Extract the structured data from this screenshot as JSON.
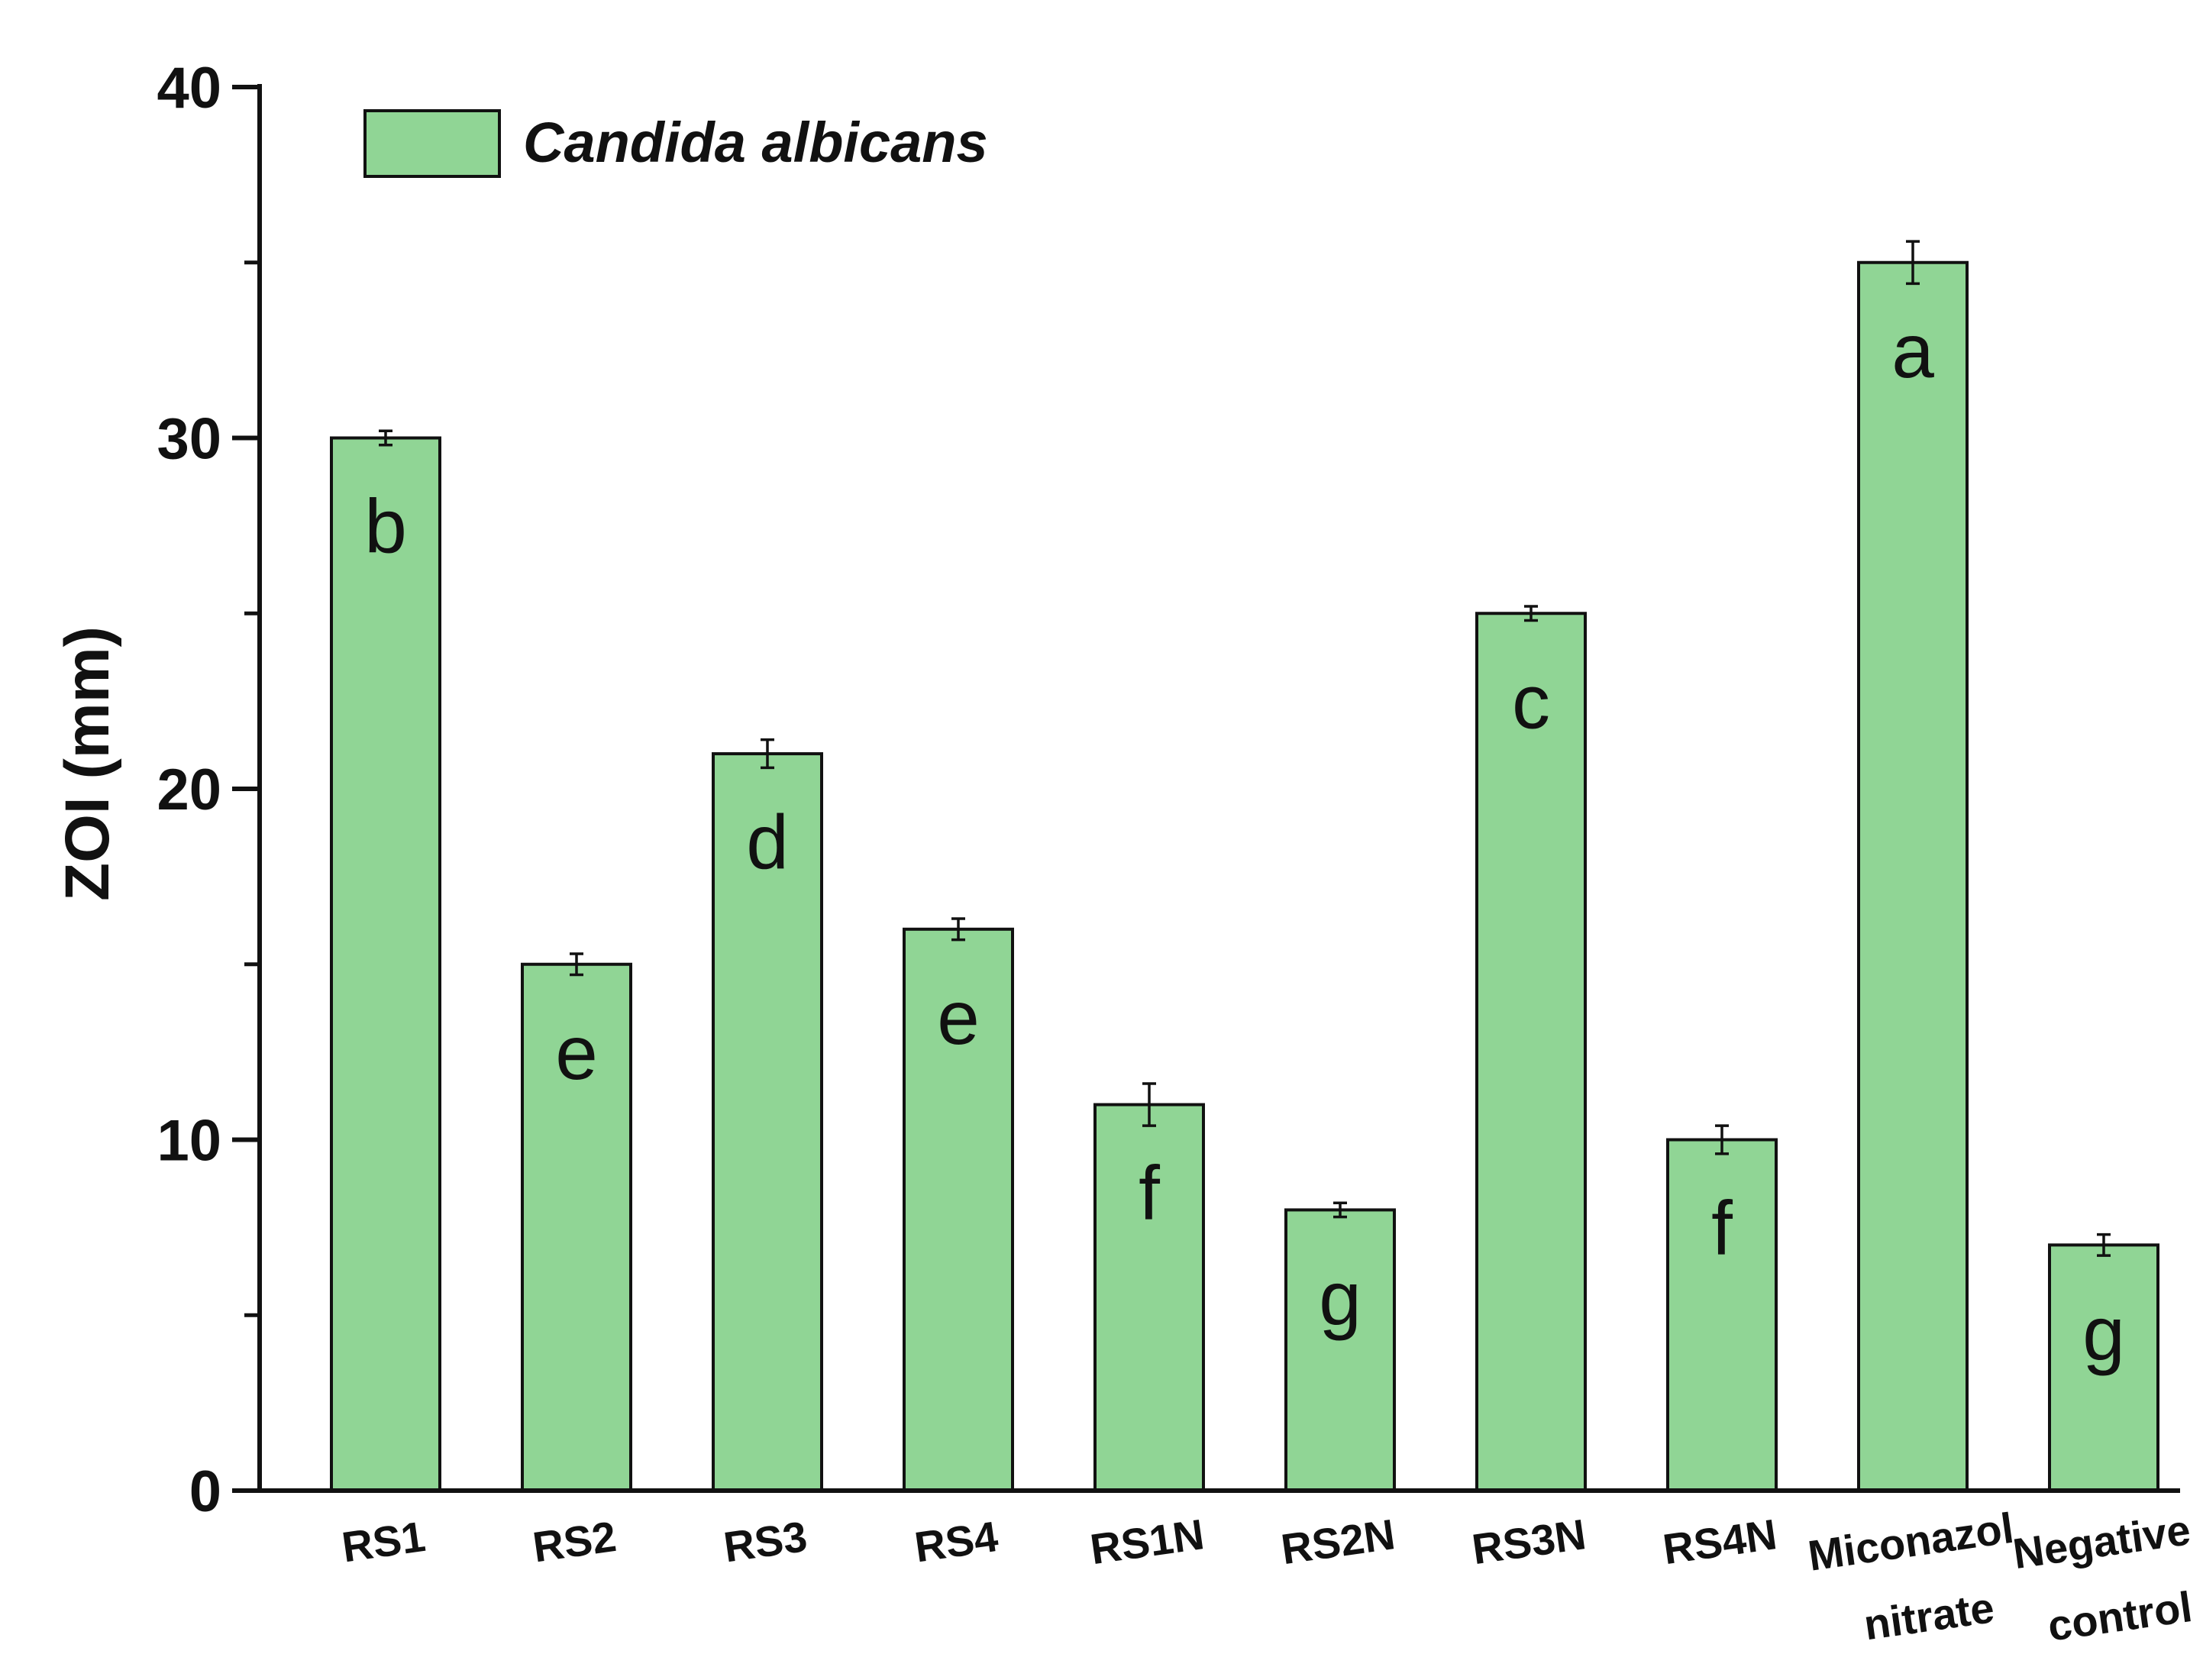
{
  "chart_data": {
    "type": "bar",
    "ylabel": "ZOI (mm)",
    "xlabel": "",
    "ylim": [
      0,
      40
    ],
    "yticks": [
      0,
      10,
      20,
      30,
      40
    ],
    "minor_yticks": [
      5,
      15,
      25,
      35
    ],
    "grid": false,
    "legend_position": "top-left",
    "series": [
      {
        "name": "Candida albicans",
        "color": "#90d595",
        "values": [
          30,
          15,
          21,
          16,
          11,
          8,
          25,
          10,
          35,
          7
        ],
        "errors": [
          0.2,
          0.3,
          0.4,
          0.3,
          0.6,
          0.2,
          0.2,
          0.4,
          0.6,
          0.3
        ],
        "labels": [
          "b",
          "e",
          "d",
          "e",
          "f",
          "g",
          "c",
          "f",
          "a",
          "g"
        ]
      }
    ],
    "categories": [
      [
        "RS1"
      ],
      [
        "RS2"
      ],
      [
        "RS3"
      ],
      [
        "RS4"
      ],
      [
        "RS1N"
      ],
      [
        "RS2N"
      ],
      [
        "RS3N"
      ],
      [
        "RS4N"
      ],
      [
        "Miconazol",
        "nitrate"
      ],
      [
        "Negative",
        "control"
      ]
    ]
  }
}
